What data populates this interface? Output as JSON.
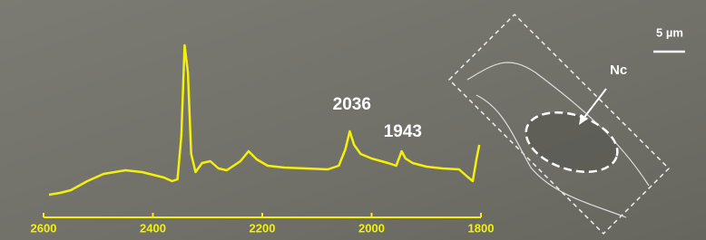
{
  "chart_data": {
    "type": "line",
    "x": [
      2590,
      2570,
      2550,
      2520,
      2490,
      2450,
      2420,
      2400,
      2380,
      2365,
      2355,
      2348,
      2342,
      2336,
      2330,
      2322,
      2310,
      2295,
      2280,
      2265,
      2240,
      2225,
      2210,
      2190,
      2160,
      2120,
      2080,
      2060,
      2048,
      2040,
      2032,
      2020,
      2000,
      1970,
      1955,
      1945,
      1938,
      1925,
      1900,
      1870,
      1840,
      1825,
      1815,
      1808,
      1803
    ],
    "values": [
      12.5,
      13.5,
      15,
      20,
      24,
      26,
      25,
      23.5,
      22,
      20,
      21,
      45,
      95,
      80,
      35,
      25,
      30,
      31,
      27,
      26,
      31,
      36.5,
      32,
      28.5,
      27.5,
      27,
      26.5,
      28.5,
      37.5,
      47.5,
      40,
      35,
      32.5,
      30,
      28.5,
      36.5,
      32.5,
      30,
      28,
      27,
      26.5,
      22.5,
      20,
      32.5,
      40
    ],
    "color": "#f4f00c",
    "xlim": [
      2600,
      1800
    ],
    "xticks": [
      2600,
      2400,
      2200,
      2000,
      1800
    ],
    "ylim": [
      0,
      100
    ],
    "annotations": [
      {
        "text": "2036",
        "x": 2036,
        "y": 62
      },
      {
        "text": "1943",
        "x": 1943,
        "y": 47
      }
    ]
  },
  "micrograph": {
    "scale_bar_label": "5 µm",
    "nucleus_label": "Nc"
  }
}
